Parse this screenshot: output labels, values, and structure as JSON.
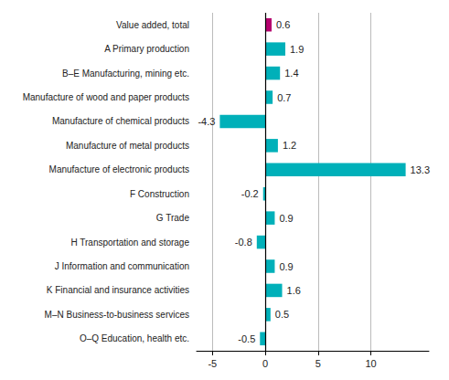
{
  "chart_data": {
    "type": "bar",
    "orientation": "horizontal",
    "categories": [
      "O–Q Education, health etc.",
      "M–N Business-to-business services",
      "K Financial and insurance activities",
      "J Information and communication",
      "H Transportation and storage",
      "G Trade",
      "F Construction",
      "Manufacture of electronic products",
      "Manufacture of metal products",
      "Manufacture of chemical products",
      "Manufacture of wood and paper products",
      "B–E Manufacturing, mining etc.",
      "A Primary production",
      "Value added, total"
    ],
    "values": [
      -0.5,
      0.5,
      1.6,
      0.9,
      -0.8,
      0.9,
      -0.2,
      13.3,
      1.2,
      -4.3,
      0.7,
      1.4,
      1.9,
      0.6
    ],
    "colors": [
      "#00b0b9",
      "#00b0b9",
      "#00b0b9",
      "#00b0b9",
      "#00b0b9",
      "#00b0b9",
      "#00b0b9",
      "#00b0b9",
      "#00b0b9",
      "#00b0b9",
      "#00b0b9",
      "#00b0b9",
      "#00b0b9",
      "#b5006e"
    ],
    "xlim": [
      -6.5,
      15.5
    ],
    "xticks": [
      -5,
      0,
      5,
      10
    ],
    "grid": true,
    "data_labels": true
  }
}
